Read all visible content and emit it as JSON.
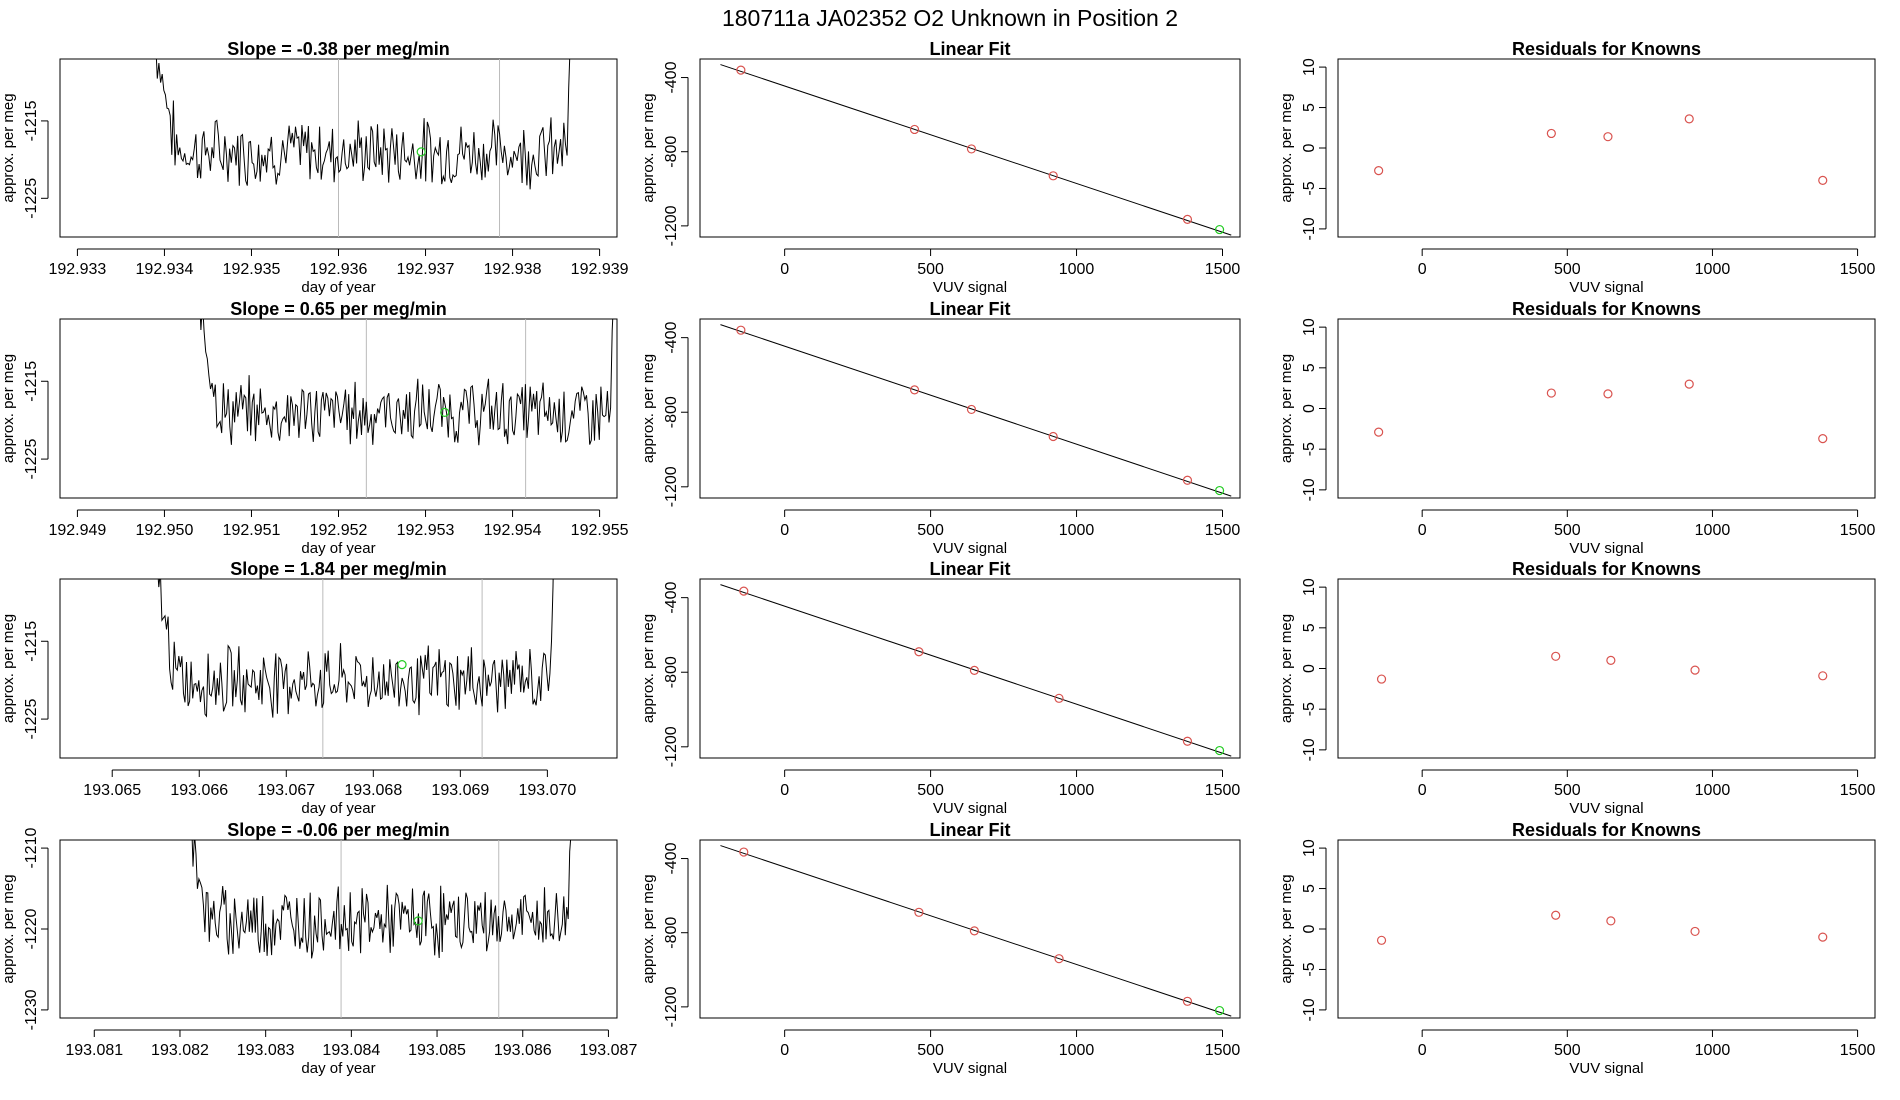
{
  "page_title": "180711a      JA02352    O2 Unknown in Position  2",
  "colors": {
    "line": "#000000",
    "known_point": "#d9534f",
    "unknown_point": "#22cc22",
    "vline": "#bbbbbb",
    "axis": "#000000"
  },
  "chart_data": [
    {
      "type": "line",
      "title": "Slope =  -0.38  per meg/min",
      "xlabel": "day of year",
      "ylabel": "approx. per meg",
      "xlim": [
        192.9328,
        192.9392
      ],
      "ylim": [
        -1230,
        -1207
      ],
      "xticks": [
        "192.933",
        "192.934",
        "192.935",
        "192.936",
        "192.937",
        "192.938",
        "192.939"
      ],
      "xtick_values": [
        192.933,
        192.934,
        192.935,
        192.936,
        192.937,
        192.938,
        192.939
      ],
      "yticks": [
        "-1215",
        "-1225"
      ],
      "ytick_values": [
        -1215,
        -1225
      ],
      "series_x_start": 192.9339,
      "series_x_end": 192.9387,
      "series_baseline": -1219,
      "vlines": [
        192.936,
        192.93785
      ],
      "marker": {
        "x": 192.93695,
        "y": -1219
      }
    },
    {
      "type": "scatter",
      "title": "Linear Fit",
      "xlabel": "VUV signal",
      "ylabel": "approx. per meg",
      "xlim": [
        -290,
        1560
      ],
      "ylim": [
        -1260,
        -300
      ],
      "xticks": [
        "0",
        "500",
        "1000",
        "1500"
      ],
      "xtick_values": [
        0,
        500,
        1000,
        1500
      ],
      "yticks": [
        "-400",
        "-800",
        "-1200"
      ],
      "ytick_values": [
        -400,
        -800,
        -1200
      ],
      "fit_line": [
        [
          -220,
          -330
        ],
        [
          1530,
          -1250
        ]
      ],
      "known_x": [
        -150,
        445,
        640,
        920,
        1380
      ],
      "known_y": [
        -360,
        -680,
        -785,
        -930,
        -1165
      ],
      "unknown_x": [
        1490
      ],
      "unknown_y": [
        -1220
      ]
    },
    {
      "type": "scatter",
      "title": "Residuals for Knowns",
      "xlabel": "VUV signal",
      "ylabel": "approx. per meg",
      "xlim": [
        -290,
        1560
      ],
      "ylim": [
        -11,
        11
      ],
      "xticks": [
        "0",
        "500",
        "1000",
        "1500"
      ],
      "xtick_values": [
        0,
        500,
        1000,
        1500
      ],
      "yticks": [
        "-10",
        "-5",
        "0",
        "5",
        "10"
      ],
      "ytick_values": [
        -10,
        -5,
        0,
        5,
        10
      ],
      "x": [
        -150,
        445,
        640,
        920,
        1380
      ],
      "y": [
        -2.8,
        1.8,
        1.4,
        3.6,
        -4.0
      ]
    },
    {
      "type": "line",
      "title": "Slope =  0.65  per meg/min",
      "xlabel": "day of year",
      "ylabel": "approx. per meg",
      "xlim": [
        192.9488,
        192.9552
      ],
      "ylim": [
        -1230,
        -1207
      ],
      "xticks": [
        "192.949",
        "192.950",
        "192.951",
        "192.952",
        "192.953",
        "192.954",
        "192.955"
      ],
      "xtick_values": [
        192.949,
        192.95,
        192.951,
        192.952,
        192.953,
        192.954,
        192.955
      ],
      "yticks": [
        "-1215",
        "-1225"
      ],
      "ytick_values": [
        -1215,
        -1225
      ],
      "series_x_start": 192.9504,
      "series_x_end": 192.9552,
      "series_baseline": -1219,
      "vlines": [
        192.95232,
        192.95415
      ],
      "marker": {
        "x": 192.95322,
        "y": -1219
      }
    },
    {
      "type": "scatter",
      "title": "Linear Fit",
      "xlabel": "VUV signal",
      "ylabel": "approx. per meg",
      "xlim": [
        -290,
        1560
      ],
      "ylim": [
        -1260,
        -300
      ],
      "xticks": [
        "0",
        "500",
        "1000",
        "1500"
      ],
      "xtick_values": [
        0,
        500,
        1000,
        1500
      ],
      "yticks": [
        "-400",
        "-800",
        "-1200"
      ],
      "ytick_values": [
        -400,
        -800,
        -1200
      ],
      "fit_line": [
        [
          -220,
          -330
        ],
        [
          1530,
          -1250
        ]
      ],
      "known_x": [
        -150,
        445,
        640,
        920,
        1380
      ],
      "known_y": [
        -360,
        -680,
        -785,
        -930,
        -1165
      ],
      "unknown_x": [
        1490
      ],
      "unknown_y": [
        -1220
      ]
    },
    {
      "type": "scatter",
      "title": "Residuals for Knowns",
      "xlabel": "VUV signal",
      "ylabel": "approx. per meg",
      "xlim": [
        -290,
        1560
      ],
      "ylim": [
        -11,
        11
      ],
      "xticks": [
        "0",
        "500",
        "1000",
        "1500"
      ],
      "xtick_values": [
        0,
        500,
        1000,
        1500
      ],
      "yticks": [
        "-10",
        "-5",
        "0",
        "5",
        "10"
      ],
      "ytick_values": [
        -10,
        -5,
        0,
        5,
        10
      ],
      "x": [
        -150,
        445,
        640,
        920,
        1380
      ],
      "y": [
        -2.9,
        1.9,
        1.8,
        3.0,
        -3.7
      ]
    },
    {
      "type": "line",
      "title": "Slope =  1.84  per meg/min",
      "xlabel": "day of year",
      "ylabel": "approx. per meg",
      "xlim": [
        193.0644,
        193.0708
      ],
      "ylim": [
        -1230,
        -1207
      ],
      "xticks": [
        "193.065",
        "193.066",
        "193.067",
        "193.068",
        "193.069",
        "193.070"
      ],
      "xtick_values": [
        193.065,
        193.066,
        193.067,
        193.068,
        193.069,
        193.07
      ],
      "yticks": [
        "-1215",
        "-1225"
      ],
      "ytick_values": [
        -1215,
        -1225
      ],
      "series_x_start": 193.0655,
      "series_x_end": 193.0701,
      "series_baseline": -1220,
      "vlines": [
        193.06742,
        193.06925
      ],
      "marker": {
        "x": 193.06833,
        "y": -1218
      }
    },
    {
      "type": "scatter",
      "title": "Linear Fit",
      "xlabel": "VUV signal",
      "ylabel": "approx. per meg",
      "xlim": [
        -290,
        1560
      ],
      "ylim": [
        -1260,
        -300
      ],
      "xticks": [
        "0",
        "500",
        "1000",
        "1500"
      ],
      "xtick_values": [
        0,
        500,
        1000,
        1500
      ],
      "yticks": [
        "-400",
        "-800",
        "-1200"
      ],
      "ytick_values": [
        -400,
        -800,
        -1200
      ],
      "fit_line": [
        [
          -220,
          -330
        ],
        [
          1530,
          -1250
        ]
      ],
      "known_x": [
        -140,
        460,
        650,
        940,
        1380
      ],
      "known_y": [
        -365,
        -690,
        -790,
        -940,
        -1170
      ],
      "unknown_x": [
        1490
      ],
      "unknown_y": [
        -1220
      ]
    },
    {
      "type": "scatter",
      "title": "Residuals for Knowns",
      "xlabel": "VUV signal",
      "ylabel": "approx. per meg",
      "xlim": [
        -290,
        1560
      ],
      "ylim": [
        -11,
        11
      ],
      "xticks": [
        "0",
        "500",
        "1000",
        "1500"
      ],
      "xtick_values": [
        0,
        500,
        1000,
        1500
      ],
      "yticks": [
        "-10",
        "-5",
        "0",
        "5",
        "10"
      ],
      "ytick_values": [
        -10,
        -5,
        0,
        5,
        10
      ],
      "x": [
        -140,
        460,
        650,
        940,
        1380
      ],
      "y": [
        -1.3,
        1.5,
        1.0,
        -0.2,
        -0.9
      ]
    },
    {
      "type": "line",
      "title": "Slope =  -0.06  per meg/min",
      "xlabel": "day of year",
      "ylabel": "approx. per meg",
      "xlim": [
        193.0806,
        193.0871
      ],
      "ylim": [
        -1231,
        -1209
      ],
      "xticks": [
        "193.081",
        "193.082",
        "193.083",
        "193.084",
        "193.085",
        "193.086",
        "193.087"
      ],
      "xtick_values": [
        193.081,
        193.082,
        193.083,
        193.084,
        193.085,
        193.086,
        193.087
      ],
      "yticks": [
        "-1210",
        "-1220",
        "-1230"
      ],
      "ytick_values": [
        -1210,
        -1220,
        -1230
      ],
      "series_x_start": 193.0821,
      "series_x_end": 193.0866,
      "series_baseline": -1219,
      "vlines": [
        193.08388,
        193.08572
      ],
      "marker": {
        "x": 193.08478,
        "y": -1219
      }
    },
    {
      "type": "scatter",
      "title": "Linear Fit",
      "xlabel": "VUV signal",
      "ylabel": "approx. per meg",
      "xlim": [
        -290,
        1560
      ],
      "ylim": [
        -1260,
        -300
      ],
      "xticks": [
        "0",
        "500",
        "1000",
        "1500"
      ],
      "xtick_values": [
        0,
        500,
        1000,
        1500
      ],
      "yticks": [
        "-400",
        "-800",
        "-1200"
      ],
      "ytick_values": [
        -400,
        -800,
        -1200
      ],
      "fit_line": [
        [
          -220,
          -330
        ],
        [
          1530,
          -1250
        ]
      ],
      "known_x": [
        -140,
        460,
        650,
        940,
        1380
      ],
      "known_y": [
        -365,
        -690,
        -790,
        -940,
        -1170
      ],
      "unknown_x": [
        1490
      ],
      "unknown_y": [
        -1220
      ]
    },
    {
      "type": "scatter",
      "title": "Residuals for Knowns",
      "xlabel": "VUV signal",
      "ylabel": "approx. per meg",
      "xlim": [
        -290,
        1560
      ],
      "ylim": [
        -11,
        11
      ],
      "xticks": [
        "0",
        "500",
        "1000",
        "1500"
      ],
      "xtick_values": [
        0,
        500,
        1000,
        1500
      ],
      "yticks": [
        "-10",
        "-5",
        "0",
        "5",
        "10"
      ],
      "ytick_values": [
        -10,
        -5,
        0,
        5,
        10
      ],
      "x": [
        -140,
        460,
        650,
        940,
        1380
      ],
      "y": [
        -1.4,
        1.7,
        1.0,
        -0.3,
        -1.0
      ]
    }
  ]
}
